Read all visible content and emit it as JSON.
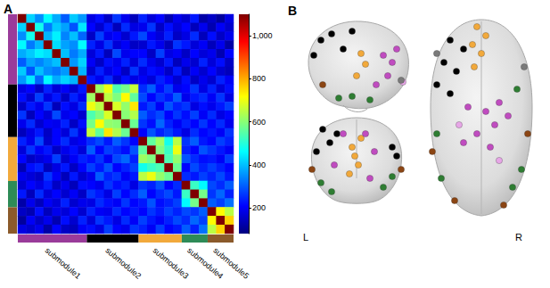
{
  "chart_data": {
    "type": "heatmap",
    "panel_label": "A",
    "tick_labels": false,
    "modules": [
      {
        "name": "submodule1",
        "color": "#9a3b9a",
        "size": 8
      },
      {
        "name": "submodule2",
        "color": "#000000",
        "size": 6
      },
      {
        "name": "submodule3",
        "color": "#f2a93b",
        "size": 5
      },
      {
        "name": "submodule4",
        "color": "#2e8b57",
        "size": 3
      },
      {
        "name": "submodule5",
        "color": "#8b5a2b",
        "size": 3
      }
    ],
    "cells": [
      [
        1100,
        420,
        350,
        460,
        380,
        300,
        410,
        360,
        180,
        220,
        150,
        260,
        190,
        140,
        240,
        170,
        210,
        130,
        190,
        160,
        230,
        120,
        150,
        110,
        180
      ],
      [
        420,
        1100,
        480,
        330,
        410,
        370,
        290,
        440,
        210,
        160,
        230,
        140,
        250,
        180,
        190,
        260,
        150,
        220,
        170,
        210,
        140,
        190,
        130,
        200,
        160
      ],
      [
        350,
        480,
        1100,
        390,
        450,
        340,
        400,
        310,
        150,
        270,
        190,
        210,
        160,
        230,
        280,
        200,
        170,
        240,
        150,
        180,
        250,
        140,
        220,
        150,
        190
      ],
      [
        460,
        330,
        390,
        1100,
        430,
        370,
        350,
        460,
        240,
        180,
        260,
        170,
        200,
        150,
        160,
        230,
        190,
        140,
        260,
        230,
        170,
        200,
        140,
        190,
        120
      ],
      [
        380,
        410,
        450,
        430,
        1100,
        400,
        330,
        380,
        170,
        230,
        140,
        280,
        190,
        210,
        210,
        150,
        270,
        180,
        200,
        150,
        210,
        170,
        190,
        130,
        210
      ],
      [
        300,
        370,
        340,
        370,
        400,
        1100,
        360,
        420,
        200,
        150,
        220,
        190,
        240,
        170,
        250,
        190,
        160,
        230,
        140,
        190,
        160,
        240,
        170,
        220,
        150
      ],
      [
        410,
        290,
        400,
        350,
        330,
        360,
        1100,
        390,
        160,
        240,
        180,
        210,
        150,
        260,
        180,
        220,
        200,
        150,
        230,
        140,
        200,
        160,
        210,
        160,
        140
      ],
      [
        360,
        440,
        310,
        460,
        380,
        420,
        390,
        1100,
        230,
        190,
        250,
        160,
        220,
        180,
        200,
        170,
        240,
        210,
        160,
        220,
        150,
        190,
        160,
        240,
        200
      ],
      [
        180,
        210,
        150,
        240,
        170,
        200,
        160,
        230,
        1100,
        620,
        700,
        540,
        580,
        660,
        250,
        300,
        220,
        270,
        190,
        210,
        260,
        180,
        240,
        170,
        220
      ],
      [
        220,
        160,
        270,
        180,
        230,
        150,
        240,
        190,
        620,
        1100,
        650,
        590,
        720,
        560,
        280,
        210,
        260,
        230,
        300,
        190,
        230,
        250,
        200,
        260,
        180
      ],
      [
        150,
        230,
        190,
        260,
        140,
        220,
        180,
        250,
        700,
        650,
        1100,
        680,
        610,
        740,
        230,
        270,
        200,
        290,
        240,
        260,
        180,
        220,
        190,
        230,
        270
      ],
      [
        260,
        140,
        210,
        170,
        280,
        190,
        210,
        160,
        540,
        590,
        680,
        1100,
        600,
        640,
        300,
        250,
        280,
        210,
        260,
        220,
        270,
        200,
        250,
        180,
        210
      ],
      [
        190,
        250,
        160,
        200,
        190,
        240,
        150,
        220,
        580,
        720,
        610,
        600,
        1100,
        570,
        260,
        220,
        310,
        240,
        200,
        240,
        210,
        260,
        210,
        250,
        190
      ],
      [
        140,
        180,
        230,
        150,
        210,
        170,
        260,
        180,
        660,
        560,
        740,
        640,
        570,
        1100,
        210,
        290,
        240,
        270,
        230,
        180,
        250,
        210,
        230,
        200,
        260
      ],
      [
        240,
        190,
        280,
        160,
        210,
        250,
        180,
        200,
        250,
        280,
        230,
        300,
        260,
        210,
        1100,
        560,
        620,
        480,
        650,
        260,
        300,
        230,
        210,
        270,
        240
      ],
      [
        170,
        260,
        200,
        230,
        150,
        190,
        220,
        170,
        300,
        210,
        270,
        250,
        220,
        290,
        560,
        1100,
        590,
        520,
        700,
        240,
        210,
        290,
        260,
        230,
        200
      ],
      [
        210,
        150,
        170,
        190,
        270,
        160,
        200,
        240,
        220,
        260,
        200,
        280,
        310,
        240,
        620,
        590,
        1100,
        540,
        610,
        290,
        250,
        220,
        230,
        200,
        270
      ],
      [
        130,
        220,
        240,
        140,
        180,
        230,
        150,
        210,
        270,
        230,
        290,
        210,
        240,
        270,
        480,
        520,
        540,
        1100,
        570,
        210,
        280,
        240,
        270,
        240,
        210
      ],
      [
        190,
        170,
        150,
        260,
        200,
        140,
        230,
        160,
        190,
        300,
        240,
        260,
        200,
        230,
        650,
        700,
        610,
        570,
        1100,
        250,
        230,
        270,
        240,
        280,
        230
      ],
      [
        160,
        210,
        180,
        230,
        150,
        190,
        140,
        220,
        210,
        190,
        260,
        220,
        240,
        180,
        260,
        240,
        290,
        210,
        250,
        1100,
        520,
        460,
        280,
        250,
        300
      ],
      [
        230,
        140,
        250,
        170,
        210,
        160,
        200,
        150,
        260,
        230,
        180,
        270,
        210,
        250,
        300,
        210,
        250,
        280,
        230,
        520,
        1100,
        580,
        260,
        310,
        240
      ],
      [
        120,
        190,
        140,
        200,
        170,
        240,
        160,
        190,
        180,
        250,
        220,
        200,
        260,
        210,
        230,
        290,
        220,
        240,
        270,
        460,
        580,
        1100,
        300,
        270,
        320
      ],
      [
        150,
        130,
        220,
        140,
        190,
        170,
        210,
        160,
        240,
        200,
        190,
        250,
        210,
        230,
        210,
        260,
        230,
        270,
        240,
        280,
        260,
        300,
        1100,
        720,
        650
      ],
      [
        110,
        200,
        150,
        190,
        130,
        220,
        160,
        240,
        170,
        260,
        230,
        180,
        250,
        200,
        270,
        230,
        200,
        240,
        280,
        250,
        310,
        270,
        720,
        1100,
        760
      ],
      [
        180,
        160,
        190,
        120,
        210,
        150,
        140,
        200,
        220,
        180,
        270,
        210,
        190,
        260,
        240,
        200,
        270,
        210,
        230,
        300,
        240,
        320,
        650,
        760,
        1100
      ]
    ],
    "colorbar": {
      "range": [
        80,
        1100
      ],
      "ticks": [
        200,
        400,
        600,
        800,
        1000
      ]
    }
  },
  "panel_b": {
    "label": "B",
    "left_label": "L",
    "right_label": "R"
  }
}
